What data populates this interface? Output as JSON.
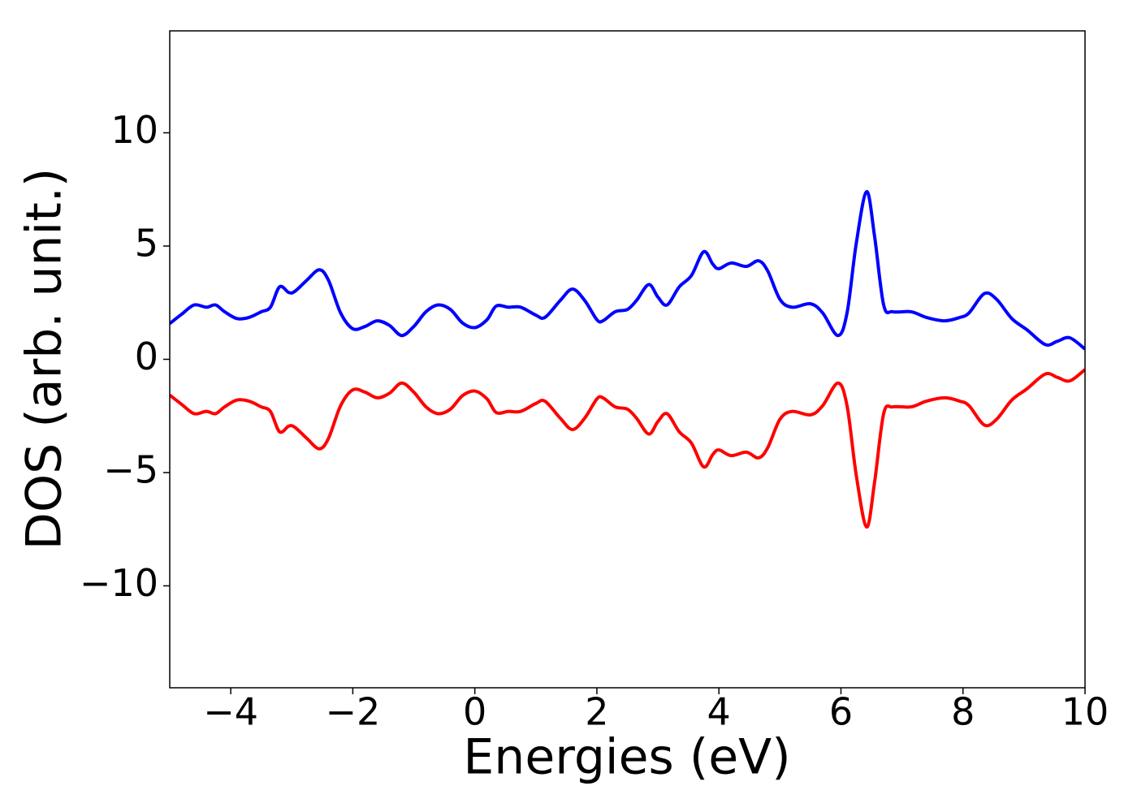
{
  "chart_data": {
    "type": "line",
    "x_label": "Energies (eV)",
    "y_label": "DOS (arb. unit.)",
    "x": [
      -5,
      -4.8,
      -4.6,
      -4.4,
      -4.25,
      -4.1,
      -3.9,
      -3.7,
      -3.5,
      -3.35,
      -3.2,
      -3.05,
      -2.95,
      -2.75,
      -2.55,
      -2.4,
      -2.2,
      -2.0,
      -1.8,
      -1.6,
      -1.4,
      -1.2,
      -1.0,
      -0.8,
      -0.6,
      -0.4,
      -0.2,
      0.0,
      0.2,
      0.35,
      0.55,
      0.75,
      1.0,
      1.15,
      1.4,
      1.6,
      1.8,
      2.0,
      2.1,
      2.3,
      2.5,
      2.65,
      2.85,
      3.0,
      3.15,
      3.35,
      3.55,
      3.75,
      3.9,
      4.0,
      4.2,
      4.45,
      4.65,
      4.8,
      5.0,
      5.2,
      5.5,
      5.7,
      5.95,
      6.1,
      6.25,
      6.42,
      6.55,
      6.7,
      6.85,
      7.15,
      7.4,
      7.7,
      7.95,
      8.1,
      8.35,
      8.55,
      8.8,
      9.05,
      9.35,
      9.55,
      9.75,
      10.0
    ],
    "series": [
      {
        "color": "#0000ff",
        "values": [
          1.58,
          2.0,
          2.4,
          2.3,
          2.4,
          2.1,
          1.8,
          1.85,
          2.1,
          2.3,
          3.2,
          2.95,
          3.0,
          3.5,
          3.95,
          3.5,
          2.05,
          1.35,
          1.45,
          1.7,
          1.5,
          1.05,
          1.45,
          2.1,
          2.4,
          2.2,
          1.6,
          1.4,
          1.75,
          2.35,
          2.3,
          2.3,
          1.95,
          1.85,
          2.6,
          3.1,
          2.6,
          1.75,
          1.7,
          2.1,
          2.2,
          2.6,
          3.3,
          2.75,
          2.4,
          3.2,
          3.7,
          4.75,
          4.2,
          4.0,
          4.25,
          4.1,
          4.35,
          3.9,
          2.65,
          2.3,
          2.45,
          2.05,
          1.05,
          2.05,
          5.1,
          7.4,
          5.45,
          2.4,
          2.1,
          2.1,
          1.85,
          1.7,
          1.85,
          2.05,
          2.9,
          2.65,
          1.8,
          1.3,
          0.65,
          0.8,
          0.95,
          0.45
        ]
      },
      {
        "color": "#ff0000",
        "values": [
          -1.58,
          -2.0,
          -2.4,
          -2.3,
          -2.4,
          -2.1,
          -1.8,
          -1.85,
          -2.1,
          -2.3,
          -3.2,
          -2.95,
          -3.0,
          -3.5,
          -3.95,
          -3.5,
          -2.05,
          -1.35,
          -1.45,
          -1.7,
          -1.5,
          -1.05,
          -1.45,
          -2.1,
          -2.4,
          -2.2,
          -1.6,
          -1.4,
          -1.75,
          -2.35,
          -2.3,
          -2.3,
          -1.95,
          -1.85,
          -2.6,
          -3.1,
          -2.6,
          -1.75,
          -1.7,
          -2.1,
          -2.2,
          -2.6,
          -3.3,
          -2.75,
          -2.4,
          -3.2,
          -3.7,
          -4.75,
          -4.2,
          -4.0,
          -4.25,
          -4.1,
          -4.35,
          -3.9,
          -2.65,
          -2.3,
          -2.45,
          -2.05,
          -1.05,
          -2.05,
          -5.1,
          -7.4,
          -5.45,
          -2.4,
          -2.1,
          -2.1,
          -1.85,
          -1.7,
          -1.85,
          -2.05,
          -2.9,
          -2.65,
          -1.8,
          -1.3,
          -0.65,
          -0.8,
          -0.95,
          -0.45
        ]
      }
    ],
    "xlim": [
      -5,
      10
    ],
    "ylim": [
      -14.5,
      14.5
    ],
    "xticks": [
      {
        "value": -4,
        "label": "−4"
      },
      {
        "value": -2,
        "label": "−2"
      },
      0,
      2,
      4,
      6,
      8,
      10
    ],
    "yticks": [
      {
        "value": -10,
        "label": "−10"
      },
      {
        "value": -5,
        "label": "−5"
      },
      0,
      5,
      10
    ]
  }
}
